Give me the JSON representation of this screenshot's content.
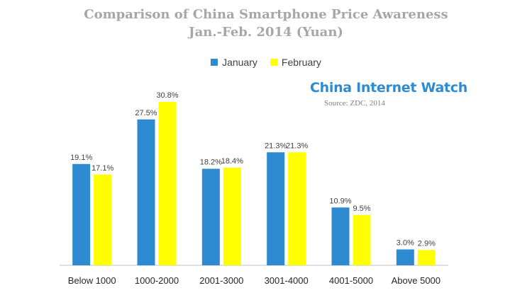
{
  "chart_data": {
    "type": "bar",
    "title": "Comparison of China Smartphone Price Awareness",
    "subtitle": "Jan.-Feb. 2014 (Yuan)",
    "categories": [
      "Below 1000",
      "1000-2000",
      "2001-3000",
      "3001-4000",
      "4001-5000",
      "Above 5000"
    ],
    "series": [
      {
        "name": "January",
        "values": [
          19.1,
          27.5,
          18.2,
          21.3,
          10.9,
          3.0
        ],
        "labels": [
          "19.1%",
          "27.5%",
          "18.2%",
          "21.3%",
          "10.9%",
          "3.0%"
        ],
        "color": "#2e8bd1"
      },
      {
        "name": "February",
        "values": [
          17.1,
          30.8,
          18.4,
          21.3,
          9.5,
          2.9
        ],
        "labels": [
          "17.1%",
          "30.8%",
          "18.4%",
          "21.3%",
          "9.5%",
          "2.9%"
        ],
        "color": "#ffff00"
      }
    ],
    "ylim": [
      0,
      35
    ],
    "grid": false,
    "legend": "top-center"
  },
  "watermark": "China Internet Watch",
  "source": "Source: ZDC, 2014"
}
